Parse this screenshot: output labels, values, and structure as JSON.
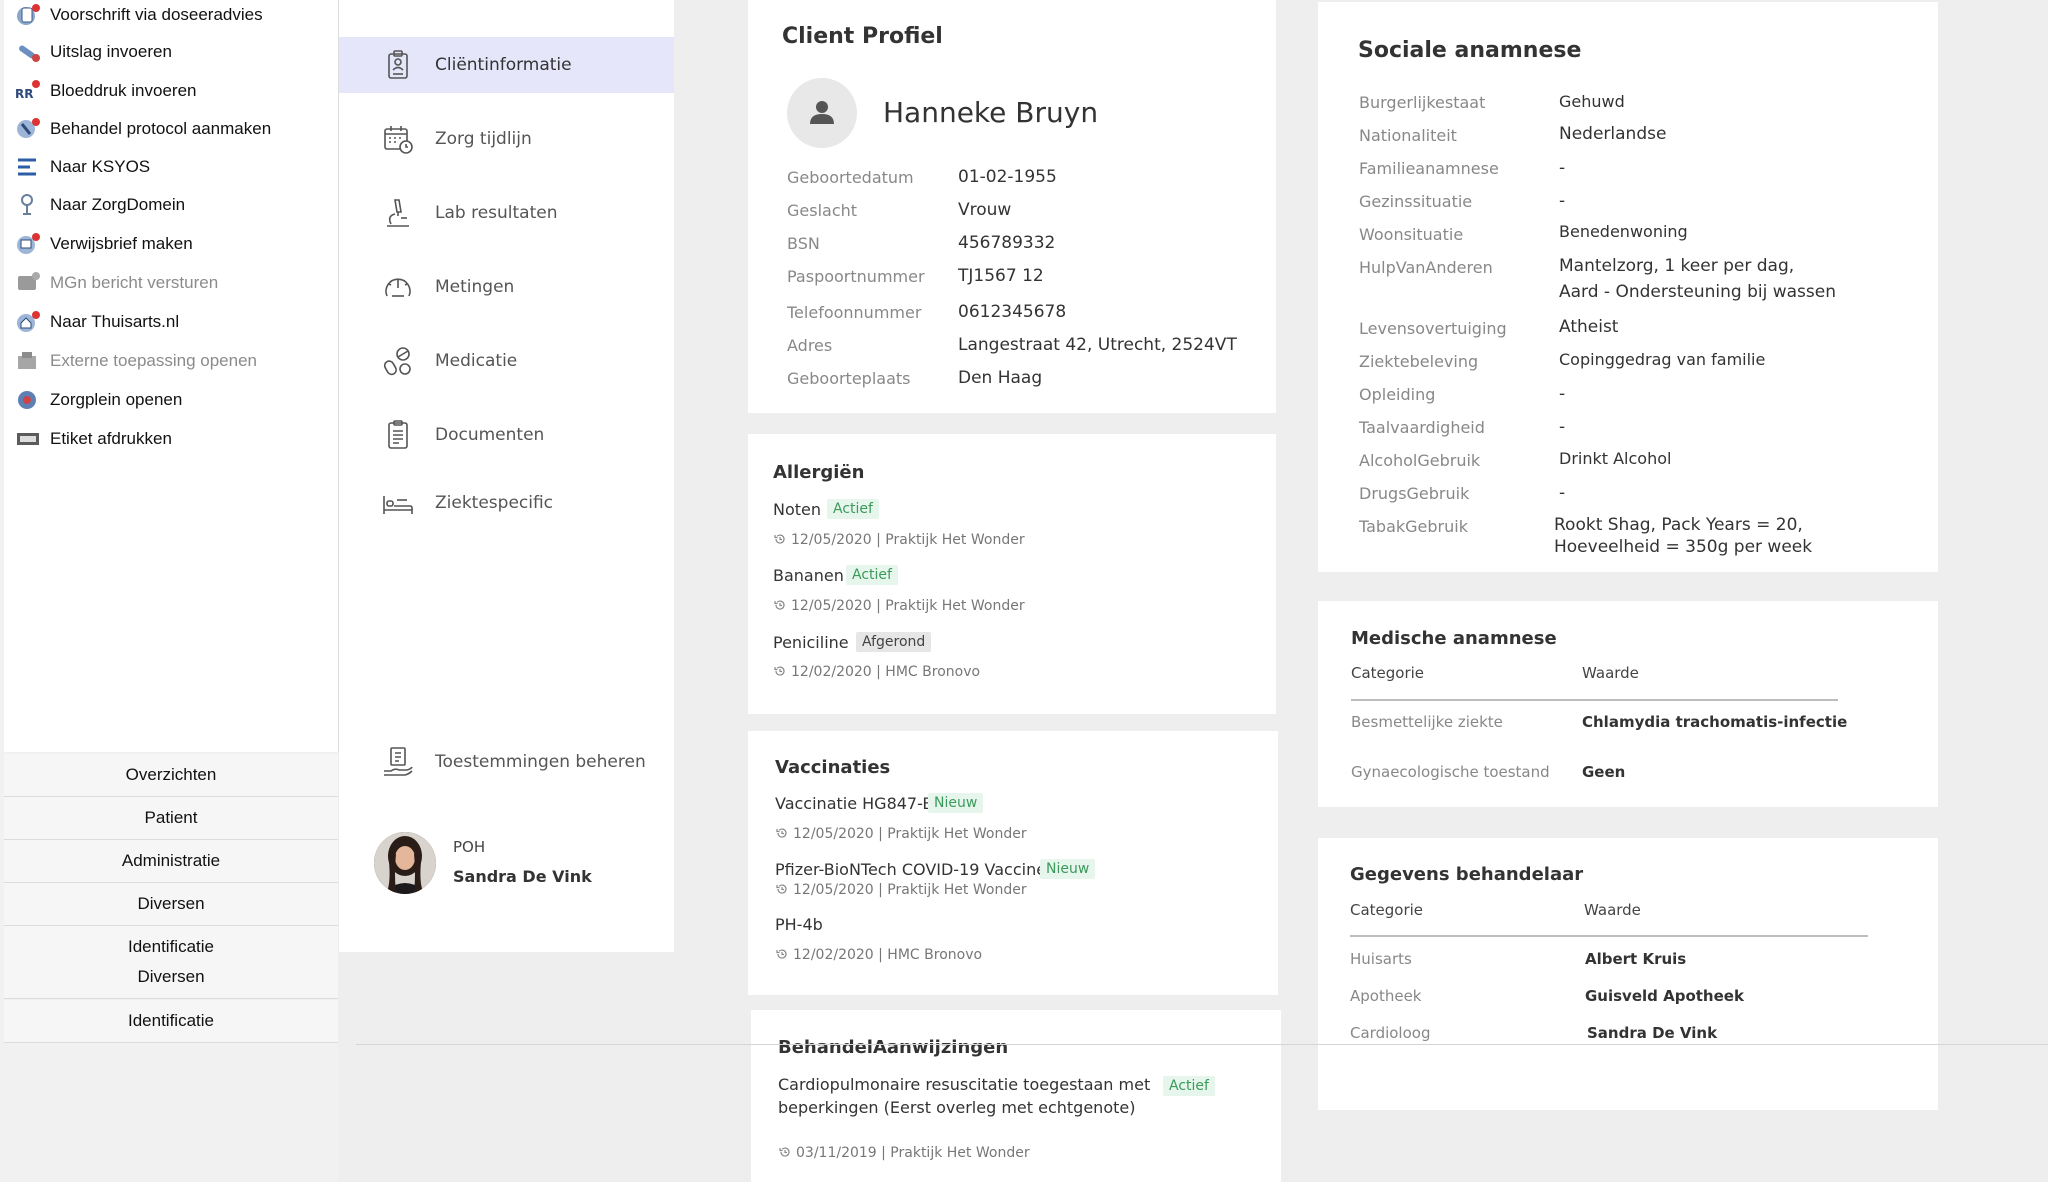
{
  "legacy_menu": {
    "items": [
      {
        "label": "Voorschrift via doseeradvies",
        "icon": "prescription-icon",
        "disabled": false
      },
      {
        "label": "Uitslag invoeren",
        "icon": "lab-result-icon",
        "disabled": false
      },
      {
        "label": "Bloeddruk invoeren",
        "icon": "blood-pressure-icon",
        "disabled": false
      },
      {
        "label": "Behandel protocol aanmaken",
        "icon": "protocol-icon",
        "disabled": false
      },
      {
        "label": "Naar KSYOS",
        "icon": "ksyos-icon",
        "disabled": false
      },
      {
        "label": "Naar ZorgDomein",
        "icon": "zorgdomein-icon",
        "disabled": false
      },
      {
        "label": "Verwijsbrief maken",
        "icon": "referral-icon",
        "disabled": false
      },
      {
        "label": "MGn bericht versturen",
        "icon": "message-icon",
        "disabled": true
      },
      {
        "label": "Naar Thuisarts.nl",
        "icon": "thuisarts-icon",
        "disabled": false
      },
      {
        "label": "Externe toepassing openen",
        "icon": "external-app-icon",
        "disabled": true
      },
      {
        "label": "Zorgplein openen",
        "icon": "zorgplein-icon",
        "disabled": false
      },
      {
        "label": "Etiket afdrukken",
        "icon": "print-label-icon",
        "disabled": false
      }
    ],
    "buttons": [
      "Overzichten",
      "Patient",
      "Administratie",
      "Diversen",
      "Identificatie",
      "Diversen",
      "Identificatie"
    ]
  },
  "nav": {
    "items": [
      {
        "label": "Cliëntinformatie",
        "icon": "clipboard-icon",
        "active": true
      },
      {
        "label": "Zorg tijdlijn",
        "icon": "calendar-clock-icon",
        "active": false
      },
      {
        "label": "Lab resultaten",
        "icon": "microscope-icon",
        "active": false
      },
      {
        "label": "Metingen",
        "icon": "gauge-icon",
        "active": false
      },
      {
        "label": "Medicatie",
        "icon": "pills-icon",
        "active": false
      },
      {
        "label": "Documenten",
        "icon": "document-icon",
        "active": false
      },
      {
        "label": "Ziektespecific",
        "icon": "hospital-bed-icon",
        "active": false
      }
    ],
    "consent": {
      "label": "Toestemmingen beheren",
      "icon": "consent-hand-icon"
    },
    "user": {
      "role": "POH",
      "name": "Sandra De Vink"
    }
  },
  "client_profile": {
    "title": "Client Profiel",
    "name": "Hanneke Bruyn",
    "fields": [
      {
        "label": "Geboortedatum",
        "value": "01-02-1955"
      },
      {
        "label": "Geslacht",
        "value": "Vrouw"
      },
      {
        "label": "BSN",
        "value": "456789332"
      },
      {
        "label": "Paspoortnummer",
        "value": "TJ1567 12"
      },
      {
        "label": "Telefoonnummer",
        "value": "0612345678"
      },
      {
        "label": "Adres",
        "value": "Langestraat 42, Utrecht, 2524VT"
      },
      {
        "label": "Geboorteplaats",
        "value": "Den Haag"
      }
    ]
  },
  "allergies": {
    "title": "Allergiën",
    "items": [
      {
        "name": "Noten",
        "status": "Actief",
        "meta": "12/05/2020 | Praktijk Het Wonder"
      },
      {
        "name": "Bananen",
        "status": "Actief",
        "meta": "12/05/2020 | Praktijk Het Wonder"
      },
      {
        "name": "Peniciline",
        "status": "Afgerond",
        "meta": "12/02/2020 | HMC Bronovo"
      }
    ]
  },
  "vaccinations": {
    "title": "Vaccinaties",
    "items": [
      {
        "name": "Vaccinatie HG847-B",
        "status": "Nieuw",
        "meta": "12/05/2020 | Praktijk Het Wonder"
      },
      {
        "name": "Pfizer-BioNTech COVID-19 Vaccine",
        "status": "Nieuw",
        "meta": "12/05/2020 | Praktijk Het Wonder"
      },
      {
        "name": "PH-4b",
        "status": "",
        "meta": "12/02/2020 | HMC Bronovo"
      }
    ]
  },
  "treatment_directives": {
    "title": "BehandelAanwijzingen",
    "text_line1": "Cardiopulmonaire resuscitatie toegestaan met",
    "text_line2": "beperkingen (Eerst overleg met echtgenote)",
    "status": "Actief",
    "meta": "03/11/2019 | Praktijk Het Wonder"
  },
  "social_history": {
    "title": "Sociale anamnese",
    "fields": [
      {
        "label": "Burgerlijkestaat",
        "value": "Gehuwd"
      },
      {
        "label": "Nationaliteit",
        "value": "Nederlandse"
      },
      {
        "label": "Familieanamnese",
        "value": "-"
      },
      {
        "label": "Gezinssituatie",
        "value": "-"
      },
      {
        "label": "Woonsituatie",
        "value": "Benedenwoning"
      },
      {
        "label": "HulpVanAnderen",
        "value": "Mantelzorg, 1 keer per dag,",
        "value2": "Aard - Ondersteuning bij wassen"
      },
      {
        "label": "Levensovertuiging",
        "value": "Atheist"
      },
      {
        "label": "Ziektebeleving",
        "value": "Copinggedrag van familie"
      },
      {
        "label": "Opleiding",
        "value": "-"
      },
      {
        "label": "Taalvaardigheid",
        "value": "-"
      },
      {
        "label": "AlcoholGebruik",
        "value": "Drinkt Alcohol"
      },
      {
        "label": "DrugsGebruik",
        "value": "-"
      },
      {
        "label": "TabakGebruik",
        "value": "Rookt Shag, Pack Years = 20,",
        "value2": "Hoeveelheid = 350g per week"
      }
    ]
  },
  "medical_history": {
    "title": "Medische anamnese",
    "col_category": "Categorie",
    "col_value": "Waarde",
    "rows": [
      {
        "category": "Besmettelijke ziekte",
        "value": "Chlamydia trachomatis-infectie"
      },
      {
        "category": "Gynaecologische toestand",
        "value": "Geen"
      }
    ]
  },
  "practitioners": {
    "title": "Gegevens behandelaar",
    "col_category": "Categorie",
    "col_value": "Waarde",
    "rows": [
      {
        "category": "Huisarts",
        "value": "Albert Kruis"
      },
      {
        "category": "Apotheek",
        "value": "Guisveld Apotheek"
      },
      {
        "category": "Cardioloog",
        "value": "Sandra De Vink"
      }
    ]
  }
}
